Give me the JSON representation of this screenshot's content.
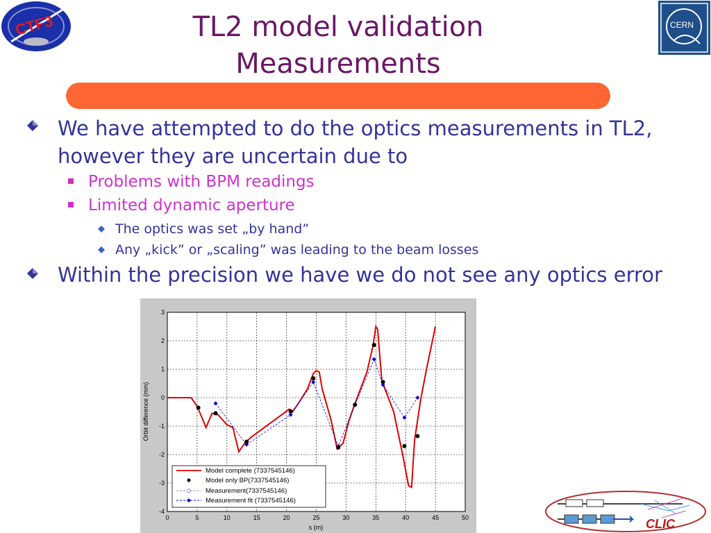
{
  "title": {
    "line1": "TL2 model validation",
    "line2": "Measurements"
  },
  "logos": {
    "ctf": "CTF3",
    "cern": "CERN",
    "clic": "CLIC"
  },
  "bullets": [
    {
      "text": "We have attempted to do the optics measurements in TL2, however they are uncertain due to"
    },
    {
      "text": "Problems with BPM readings"
    },
    {
      "text": "Limited dynamic aperture"
    },
    {
      "text": "The optics was set „by hand”"
    },
    {
      "text": "Any „kick” or „scaling” was leading to the beam losses"
    },
    {
      "text": "Within the precision we have we do not see any optics error"
    }
  ],
  "colors": {
    "title": "#6b1766",
    "accent_bar": "#ff6633",
    "level1": "#333399",
    "level2": "#cc33cc",
    "model_line": "#dd0000",
    "fit_line": "#0000dd"
  },
  "chart_data": {
    "type": "line",
    "xlabel": "s (m)",
    "ylabel": "Orbit difference (mm)",
    "xlim": [
      0,
      50
    ],
    "ylim": [
      -4,
      3
    ],
    "xticks": [
      0,
      5,
      10,
      15,
      20,
      25,
      30,
      35,
      40,
      45,
      50
    ],
    "yticks": [
      3,
      2,
      1,
      0,
      -1,
      -2,
      -3,
      -4
    ],
    "grid": true,
    "legend_position": "bottom-left",
    "series": [
      {
        "name": "Model complete (7337545146)",
        "style": "solid-red",
        "x": [
          0,
          4,
          5,
          6.5,
          7.5,
          8.5,
          10,
          11,
          12,
          13,
          14,
          20.5,
          21,
          22,
          23.5,
          24.5,
          25,
          25.5,
          26,
          27.5,
          28.5,
          29.5,
          30.5,
          31.5,
          33.5,
          34.5,
          35,
          35.3,
          36,
          38,
          39.5,
          40.5,
          41,
          41.5,
          42.5,
          43.5,
          45
        ],
        "y": [
          0,
          0,
          -0.3,
          -1.05,
          -0.55,
          -0.6,
          -0.95,
          -1.05,
          -1.9,
          -1.6,
          -1.4,
          -0.4,
          -0.5,
          -0.2,
          0.3,
          0.85,
          0.95,
          0.9,
          0.3,
          -0.8,
          -1.8,
          -1.6,
          -0.8,
          -0.2,
          0.9,
          1.8,
          2.5,
          2.4,
          0.6,
          -0.5,
          -2.0,
          -3.1,
          -3.15,
          -1.5,
          -0.1,
          1.0,
          2.5
        ]
      },
      {
        "name": "Model only BP(7337545146)",
        "style": "black-dots",
        "x": [
          5.2,
          8.1,
          13.3,
          20.7,
          24.5,
          28.7,
          31.5,
          34.7,
          36.2,
          39.8,
          42.0
        ],
        "y": [
          -0.35,
          -0.55,
          -1.55,
          -0.48,
          0.68,
          -1.75,
          -0.25,
          1.85,
          0.55,
          -1.7,
          -1.35
        ]
      },
      {
        "name": "Measurement(7337545146)",
        "style": "dashed-circles",
        "x": [
          8.1,
          13.3,
          20.7,
          24.5,
          28.7,
          31.5,
          34.7,
          36.2,
          39.8,
          42.0
        ],
        "y": [
          -0.2,
          -1.65,
          -0.6,
          0.55,
          -1.7,
          -0.25,
          1.35,
          0.45,
          -0.7,
          0.0
        ]
      },
      {
        "name": "Measurement fit (7337545146)",
        "style": "dashed-diamonds",
        "x": [
          8.1,
          13.3,
          20.7,
          24.5,
          28.7,
          31.5,
          34.7,
          36.2,
          39.8,
          42.0
        ],
        "y": [
          -0.2,
          -1.65,
          -0.6,
          0.55,
          -1.7,
          -0.25,
          1.35,
          0.45,
          -0.7,
          0.0
        ]
      }
    ]
  }
}
